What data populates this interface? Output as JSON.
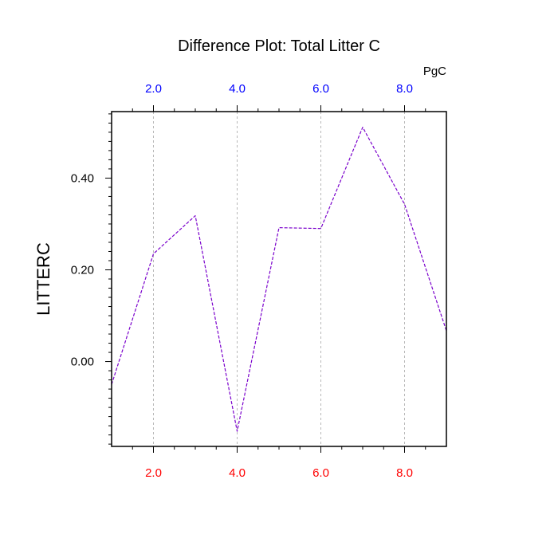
{
  "chart_data": {
    "type": "line",
    "title": "Difference Plot: Total Litter C",
    "units": "PgC",
    "xlabel": "",
    "ylabel": "LITTERC",
    "xlim": [
      1,
      9
    ],
    "ylim": [
      -0.185,
      0.545
    ],
    "x_ticks": [
      2,
      4,
      6,
      8
    ],
    "x_tick_labels": [
      "2.0",
      "4.0",
      "6.0",
      "8.0"
    ],
    "y_ticks": [
      0.0,
      0.2,
      0.4
    ],
    "y_tick_labels": [
      "0.00",
      "0.20",
      "0.40"
    ],
    "bottom_tick_color": "#ff0000",
    "top_tick_color": "#0000ff",
    "grid": "vertical dashed at major x ticks",
    "series": [
      {
        "line_color": "#7a00cc",
        "line_style": "dashed",
        "x": [
          1,
          2,
          3,
          4,
          5,
          6,
          7,
          8,
          9
        ],
        "y": [
          -0.05,
          0.235,
          0.318,
          -0.152,
          0.292,
          0.29,
          0.511,
          0.343,
          0.067
        ]
      }
    ]
  }
}
